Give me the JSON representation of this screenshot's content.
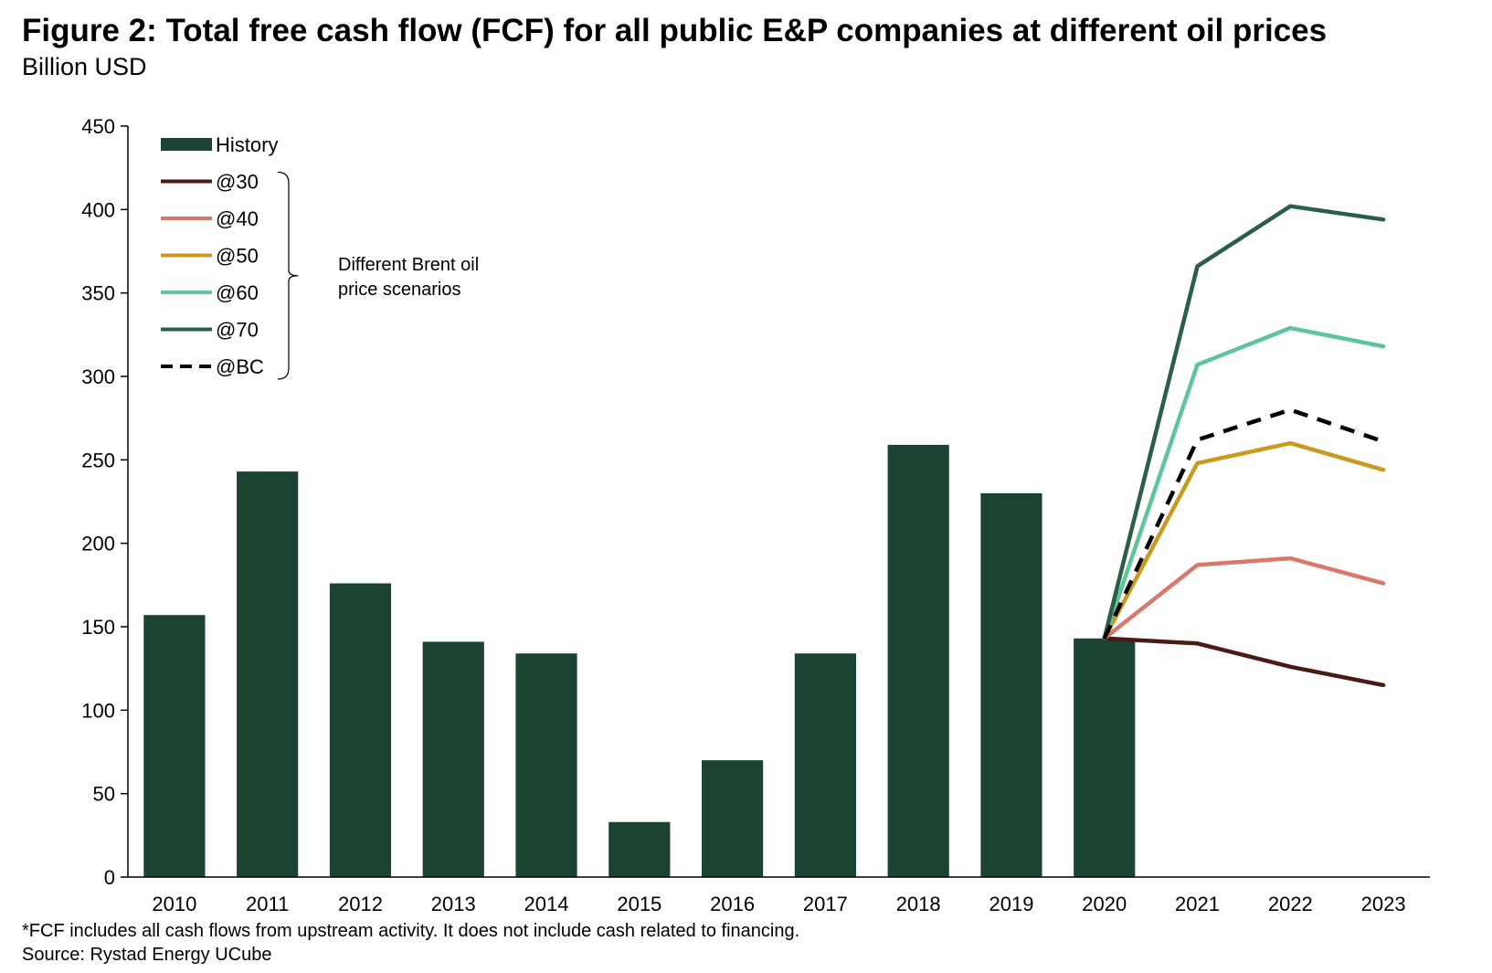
{
  "header": {
    "title": "Figure 2: Total free cash flow (FCF) for all public E&P companies at different oil prices",
    "subtitle": "Billion USD"
  },
  "footer": {
    "footnote": "*FCF includes all cash flows from upstream activity. It does not include cash related to financing.",
    "source": "Source: Rystad Energy UCube"
  },
  "colors": {
    "history": "#1b4332",
    "s30": "#4a1a14",
    "s40": "#d9776a",
    "s50": "#c99a1f",
    "s60": "#5ec49a",
    "s70": "#2a5e45",
    "sBC": "#000000"
  },
  "chart_data": {
    "type": "bar",
    "title": "Figure 2: Total free cash flow (FCF) for all public E&P companies at different oil prices",
    "ylabel": "Billion USD",
    "xlabel": "",
    "ylim": [
      0,
      450
    ],
    "yticks": [
      "0",
      "50",
      "100",
      "150",
      "200",
      "250",
      "300",
      "350",
      "400",
      "450"
    ],
    "categories": [
      "2010",
      "2011",
      "2012",
      "2013",
      "2014",
      "2015",
      "2016",
      "2017",
      "2018",
      "2019",
      "2020",
      "2021",
      "2022",
      "2023"
    ],
    "bars": {
      "name": "History",
      "categories": [
        "2010",
        "2011",
        "2012",
        "2013",
        "2014",
        "2015",
        "2016",
        "2017",
        "2018",
        "2019",
        "2020"
      ],
      "values": [
        157,
        243,
        176,
        141,
        134,
        33,
        70,
        134,
        259,
        230,
        143
      ]
    },
    "series": [
      {
        "name": "@30",
        "key": "s30",
        "dashed": false,
        "x": [
          "2020",
          "2021",
          "2022",
          "2023"
        ],
        "values": [
          143,
          140,
          126,
          115
        ]
      },
      {
        "name": "@40",
        "key": "s40",
        "dashed": false,
        "x": [
          "2020",
          "2021",
          "2022",
          "2023"
        ],
        "values": [
          143,
          187,
          191,
          176
        ]
      },
      {
        "name": "@50",
        "key": "s50",
        "dashed": false,
        "x": [
          "2020",
          "2021",
          "2022",
          "2023"
        ],
        "values": [
          143,
          248,
          260,
          244
        ]
      },
      {
        "name": "@60",
        "key": "s60",
        "dashed": false,
        "x": [
          "2020",
          "2021",
          "2022",
          "2023"
        ],
        "values": [
          143,
          307,
          329,
          318
        ]
      },
      {
        "name": "@70",
        "key": "s70",
        "dashed": false,
        "x": [
          "2020",
          "2021",
          "2022",
          "2023"
        ],
        "values": [
          143,
          366,
          402,
          394
        ]
      },
      {
        "name": "@BC",
        "key": "sBC",
        "dashed": true,
        "x": [
          "2020",
          "2021",
          "2022",
          "2023"
        ],
        "values": [
          143,
          262,
          280,
          261
        ]
      }
    ],
    "legend": {
      "placement": "top-left",
      "entries": [
        "History",
        "@30",
        "@40",
        "@50",
        "@60",
        "@70",
        "@BC"
      ],
      "annotation_line1": "Different Brent oil",
      "annotation_line2": "price scenarios"
    }
  }
}
